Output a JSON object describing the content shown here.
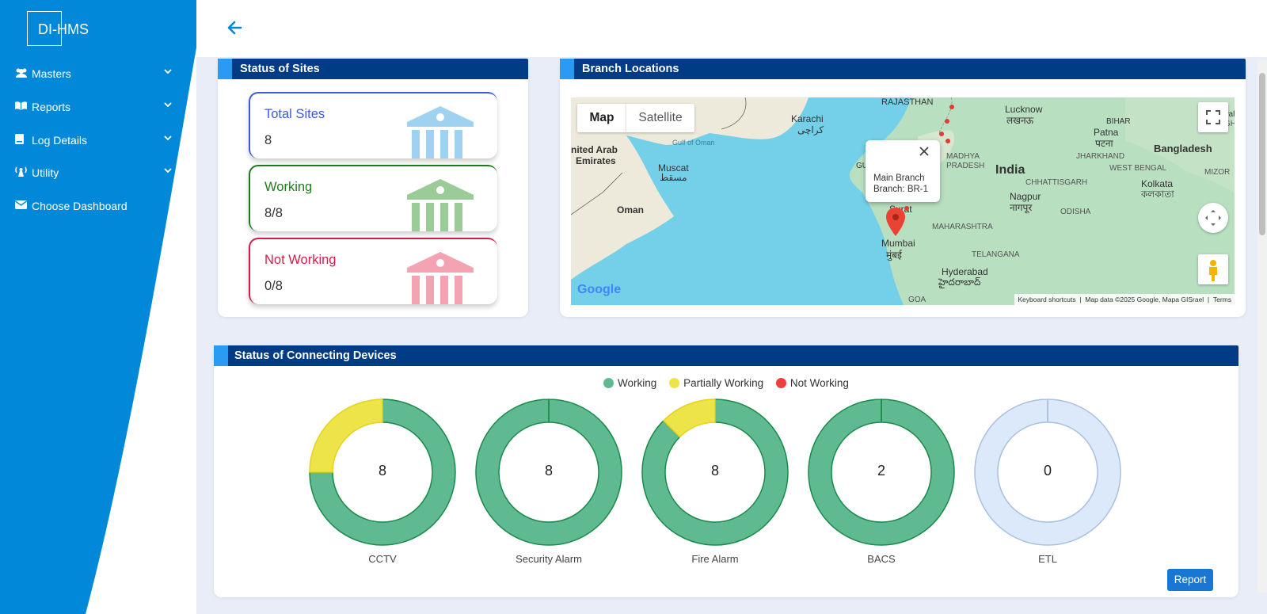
{
  "app": {
    "logo_text": "DI-HMS"
  },
  "sidebar": {
    "items": [
      {
        "label": "Masters",
        "icon": "users-icon",
        "has_chevron": true
      },
      {
        "label": "Reports",
        "icon": "book-icon",
        "has_chevron": true
      },
      {
        "label": "Log Details",
        "icon": "document-icon",
        "has_chevron": true
      },
      {
        "label": "Utility",
        "icon": "tower-icon",
        "has_chevron": true
      },
      {
        "label": "Choose Dashboard",
        "icon": "mail-icon",
        "has_chevron": false
      }
    ]
  },
  "colors": {
    "sidebar_blue": "#0288d9",
    "header_navy": "#003b85",
    "accent_blue": "#2a9bf2",
    "working": "#5fba92",
    "partially_working": "#ede44a",
    "not_working": "#ee3f3f",
    "inactive": "#dbe9fb"
  },
  "status_of_sites": {
    "title": "Status of Sites",
    "cards": [
      {
        "label": "Total Sites",
        "value": "8",
        "color": "#3b5bdb",
        "icon_color": "#9fd1f0",
        "icon": "bank-icon"
      },
      {
        "label": "Working",
        "value": "8/8",
        "color": "#1f7a1f",
        "icon_color": "#9acc98",
        "icon": "bank-icon"
      },
      {
        "label": "Not Working",
        "value": "0/8",
        "color": "#d81b45",
        "icon_color": "#f4a3b2",
        "icon": "bank-icon"
      }
    ]
  },
  "branch_locations": {
    "title": "Branch Locations",
    "map_tabs": [
      "Map",
      "Satellite"
    ],
    "popup": {
      "line1": "Main Branch",
      "line2": "Branch: BR-1"
    },
    "place_labels": [
      "RAJASTHAN",
      "Lucknow",
      "लखनऊ",
      "Karachi",
      "کراچی",
      "Patna",
      "पटना",
      "BIHAR",
      "Bangladesh",
      "Gulf of Oman",
      "Muscat",
      "مسقط",
      "nited Arab",
      "Emirates",
      "MADHYA",
      "PRADESH",
      "India",
      "JHARKHAND",
      "WEST BENGAL",
      "Kolkata",
      "কলকাতা",
      "CHHATTISGARH",
      "Nagpur",
      "नागपूर",
      "Oman",
      "ODISHA",
      "Surat",
      "MAHARASHTRA",
      "Mumbai",
      "मुंबई",
      "TELANGANA",
      "Hyderabad",
      "హైదరాబాద్",
      "GUJ",
      "Guwah",
      "MEGH",
      "MIZOR",
      "GOA",
      "Google"
    ],
    "footer": [
      "Keyboard shortcuts",
      "Map data ©2025 Google, Mapa GISrael",
      "Terms"
    ]
  },
  "connecting_devices": {
    "title": "Status of Connecting Devices",
    "legend": [
      "Working",
      "Partially Working",
      "Not Working"
    ],
    "report_label": "Report"
  },
  "chart_data": {
    "type": "donut",
    "series_names": [
      "Working",
      "Partially Working",
      "Not Working"
    ],
    "charts": [
      {
        "name": "CCTV",
        "total": "8",
        "working": 6,
        "partially_working": 2,
        "not_working": 0
      },
      {
        "name": "Security Alarm",
        "total": "8",
        "working": 8,
        "partially_working": 0,
        "not_working": 0
      },
      {
        "name": "Fire Alarm",
        "total": "8",
        "working": 7,
        "partially_working": 1,
        "not_working": 0
      },
      {
        "name": "BACS",
        "total": "2",
        "working": 2,
        "partially_working": 0,
        "not_working": 0
      },
      {
        "name": "ETL",
        "total": "0",
        "working": 0,
        "partially_working": 0,
        "not_working": 0
      }
    ]
  }
}
